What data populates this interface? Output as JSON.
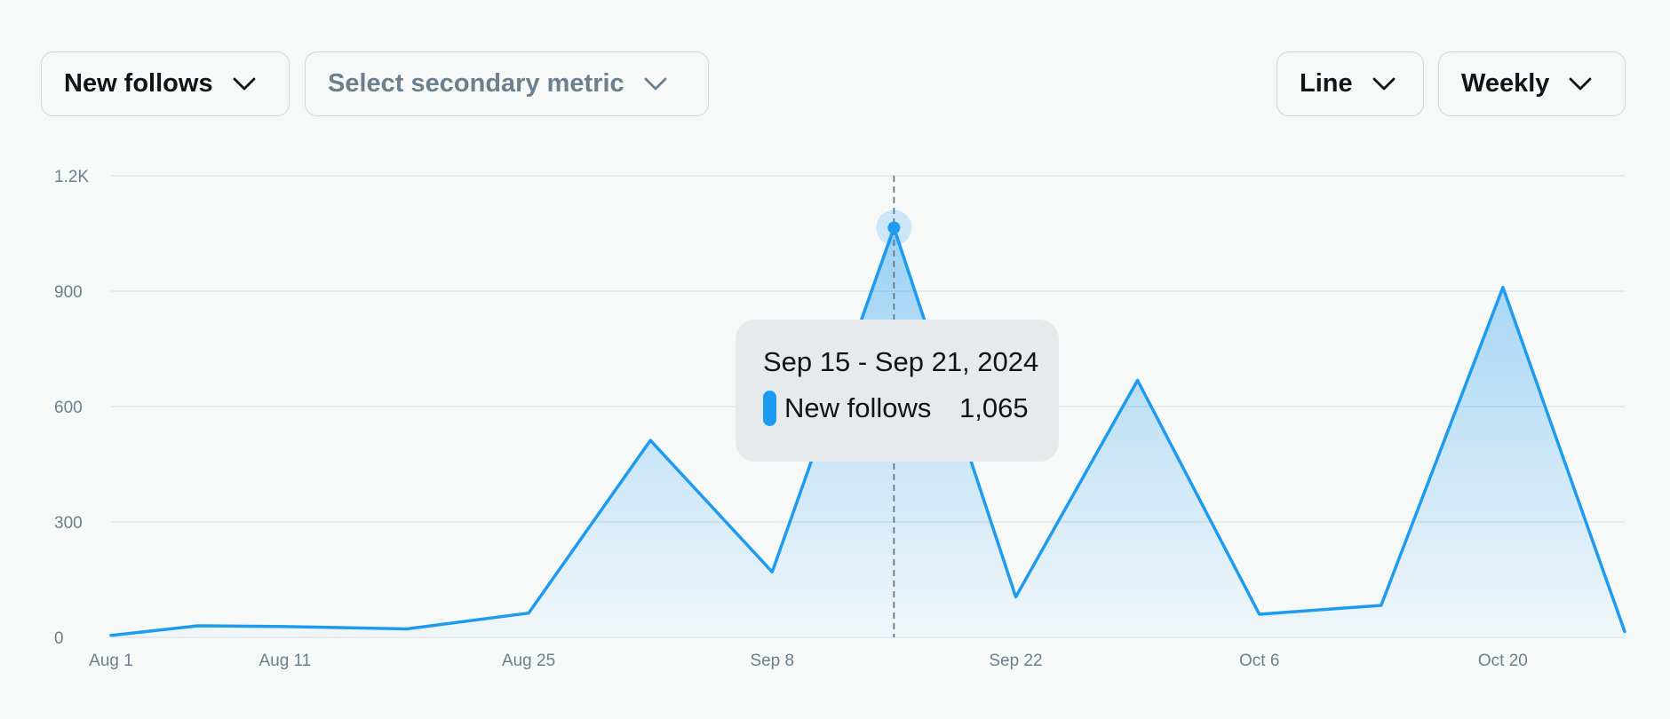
{
  "toolbar": {
    "metric_label": "New follows",
    "secondary_label": "Select secondary metric",
    "chart_type_label": "Line",
    "period_label": "Weekly"
  },
  "colors": {
    "line": "#1d9bf0",
    "grid": "#e1e6e8",
    "tick_text": "#6b7f8e"
  },
  "tooltip": {
    "date_range": "Sep 15 - Sep 21, 2024",
    "series_name": "New follows",
    "value_text": "1,065"
  },
  "chart_data": {
    "type": "area",
    "x": [
      "2024-08-01",
      "2024-08-06",
      "2024-08-11",
      "2024-08-18",
      "2024-08-25",
      "2024-09-01",
      "2024-09-08",
      "2024-09-15",
      "2024-09-22",
      "2024-09-29",
      "2024-10-06",
      "2024-10-13",
      "2024-10-20",
      "2024-10-27"
    ],
    "series": [
      {
        "name": "New follows",
        "values": [
          5,
          30,
          28,
          22,
          63,
          512,
          170,
          1065,
          105,
          668,
          60,
          83,
          910,
          15
        ]
      }
    ],
    "x_ticks": [
      {
        "x": "2024-08-01",
        "label": "Aug 1"
      },
      {
        "x": "2024-08-11",
        "label": "Aug 11"
      },
      {
        "x": "2024-08-25",
        "label": "Aug 25"
      },
      {
        "x": "2024-09-08",
        "label": "Sep 8"
      },
      {
        "x": "2024-09-22",
        "label": "Sep 22"
      },
      {
        "x": "2024-10-06",
        "label": "Oct 6"
      },
      {
        "x": "2024-10-20",
        "label": "Oct 20"
      }
    ],
    "y_ticks": [
      {
        "value": 0,
        "label": "0"
      },
      {
        "value": 300,
        "label": "300"
      },
      {
        "value": 600,
        "label": "600"
      },
      {
        "value": 900,
        "label": "900"
      },
      {
        "value": 1200,
        "label": "1.2K"
      }
    ],
    "xlim": [
      "2024-08-01",
      "2024-10-27"
    ],
    "ylim": [
      0,
      1200
    ],
    "grid": true,
    "highlight_x": "2024-09-15",
    "legend": "none"
  }
}
